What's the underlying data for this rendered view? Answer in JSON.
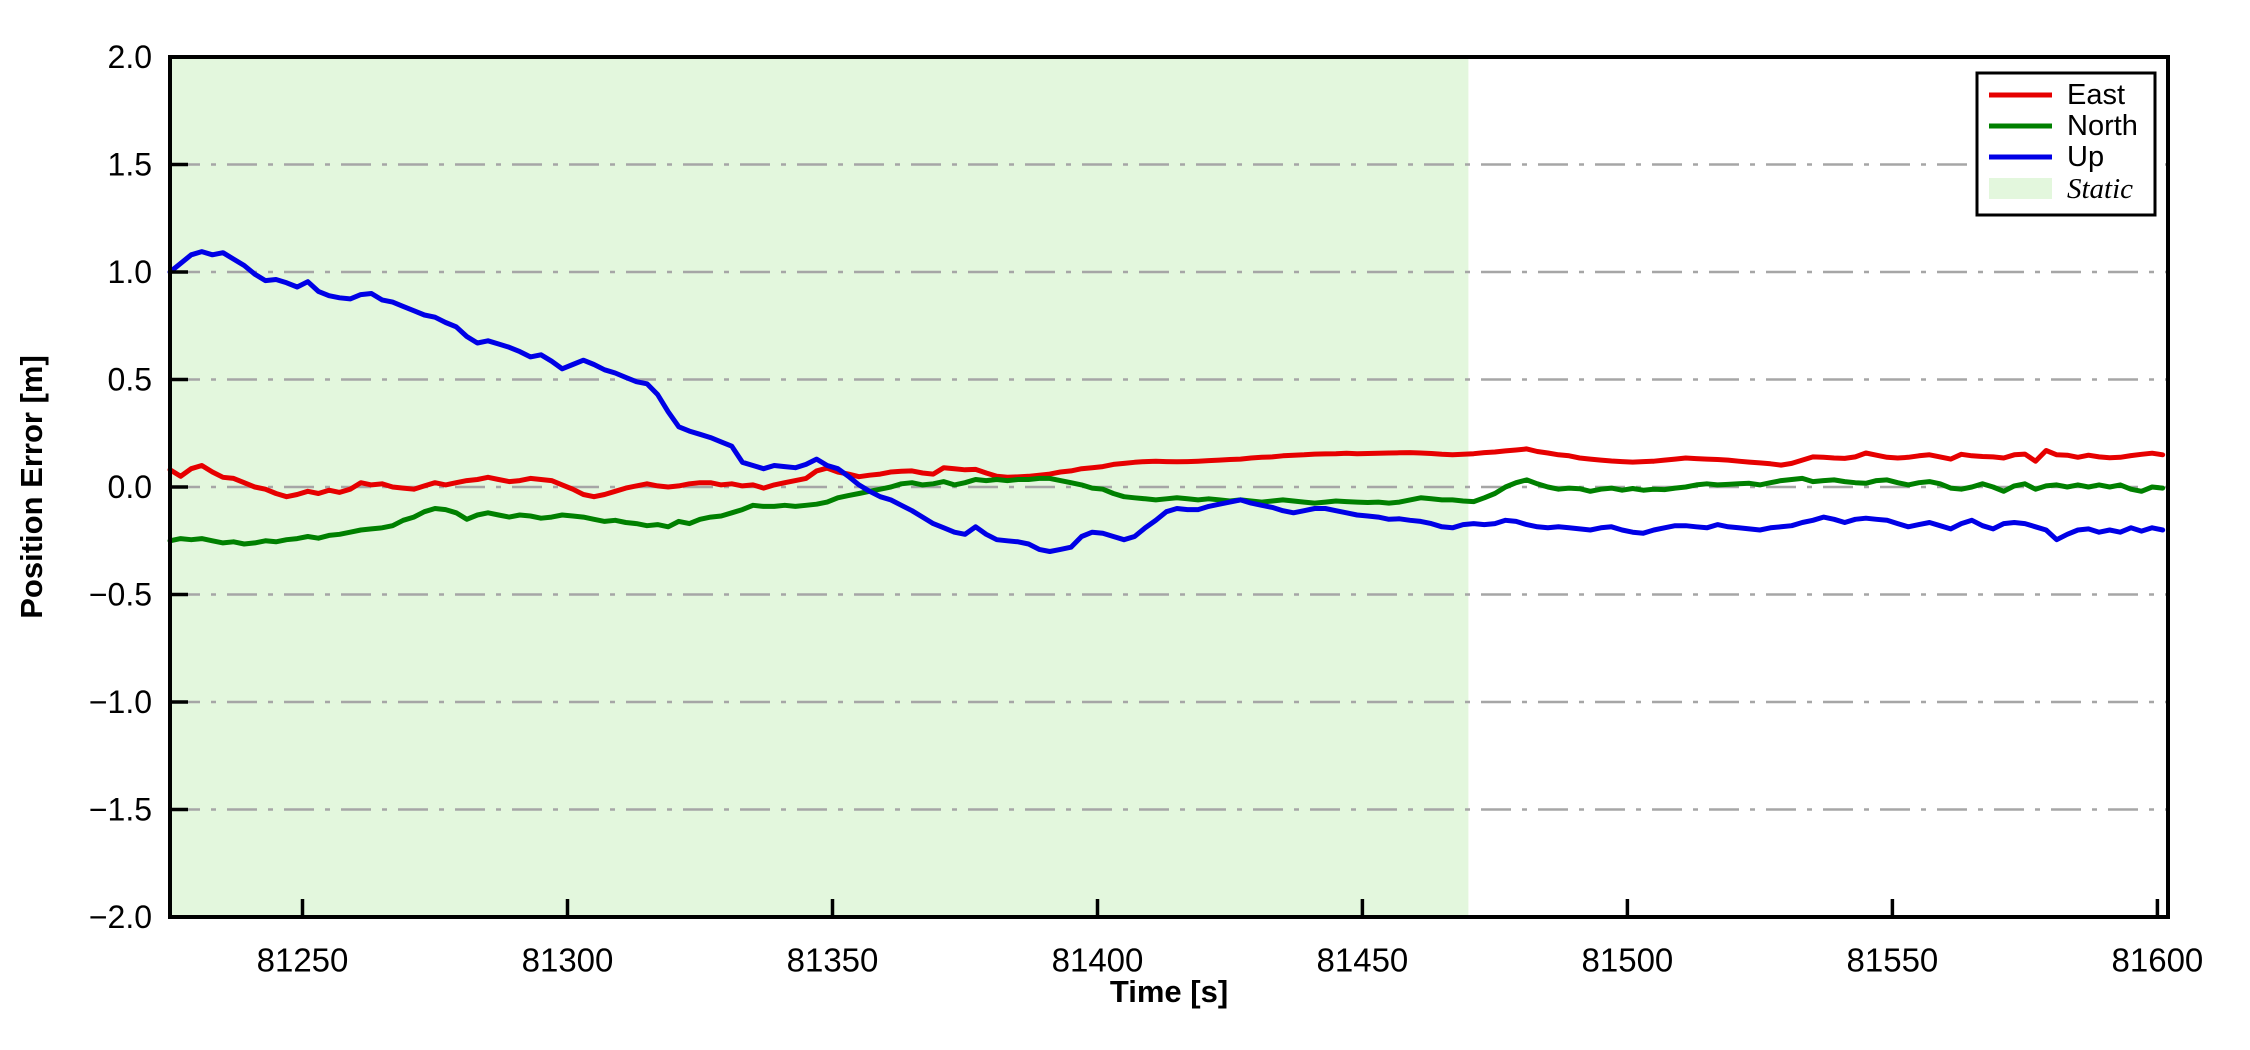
{
  "figure": {
    "xlabel": "Time [s]",
    "ylabel": "Position Error [m]"
  },
  "legend": {
    "items": [
      {
        "label": "East",
        "type": "line",
        "color": "#e60000"
      },
      {
        "label": "North",
        "type": "line",
        "color": "#008000"
      },
      {
        "label": "Up",
        "type": "line",
        "color": "#0000e6"
      },
      {
        "label": "Static",
        "type": "patch",
        "color": "#e3f7dd"
      }
    ]
  },
  "chart_data": {
    "type": "line",
    "title": "",
    "xlabel": "Time [s]",
    "ylabel": "Position Error [m]",
    "xlim": [
      81225,
      81602
    ],
    "ylim": [
      -2.0,
      2.0
    ],
    "xticks": [
      81250,
      81300,
      81350,
      81400,
      81450,
      81500,
      81550,
      81600
    ],
    "yticks": [
      2.0,
      1.5,
      1.0,
      0.5,
      0.0,
      -0.5,
      -1.0,
      -1.5,
      -2.0
    ],
    "ytick_labels": [
      "2.0",
      "1.5",
      "1.0",
      "0.5",
      "0.0",
      "−0.5",
      "−1.0",
      "−1.5",
      "−2.0"
    ],
    "grid": {
      "axis": "y",
      "style": "dash-dot",
      "color": "#a6a6a6"
    },
    "legend_position": "upper right",
    "static_region": {
      "label": "Static",
      "x_start": 81225,
      "x_end": 81470,
      "color": "#e3f7dd"
    },
    "x_start": 81225,
    "x_step": 2,
    "series": [
      {
        "name": "East",
        "color": "#e60000",
        "values": [
          0.08,
          0.05,
          0.085,
          0.1,
          0.07,
          0.045,
          0.04,
          0.02,
          0.0,
          -0.01,
          -0.03,
          -0.045,
          -0.035,
          -0.02,
          -0.03,
          -0.015,
          -0.025,
          -0.01,
          0.02,
          0.01,
          0.015,
          0.0,
          -0.005,
          -0.01,
          0.005,
          0.02,
          0.01,
          0.02,
          0.03,
          0.035,
          0.045,
          0.035,
          0.025,
          0.03,
          0.04,
          0.035,
          0.03,
          0.01,
          -0.01,
          -0.035,
          -0.045,
          -0.035,
          -0.02,
          -0.005,
          0.005,
          0.015,
          0.005,
          0.0,
          0.005,
          0.015,
          0.02,
          0.02,
          0.01,
          0.015,
          0.005,
          0.01,
          -0.005,
          0.01,
          0.02,
          0.03,
          0.04,
          0.075,
          0.088,
          0.07,
          0.06,
          0.048,
          0.055,
          0.06,
          0.07,
          0.073,
          0.075,
          0.065,
          0.06,
          0.09,
          0.085,
          0.08,
          0.082,
          0.065,
          0.05,
          0.045,
          0.047,
          0.05,
          0.055,
          0.06,
          0.07,
          0.075,
          0.085,
          0.09,
          0.095,
          0.105,
          0.11,
          0.115,
          0.118,
          0.12,
          0.118,
          0.117,
          0.118,
          0.12,
          0.123,
          0.125,
          0.128,
          0.13,
          0.135,
          0.138,
          0.14,
          0.145,
          0.148,
          0.15,
          0.153,
          0.154,
          0.155,
          0.157,
          0.155,
          0.156,
          0.157,
          0.158,
          0.159,
          0.16,
          0.158,
          0.156,
          0.152,
          0.15,
          0.152,
          0.155,
          0.16,
          0.163,
          0.168,
          0.172,
          0.177,
          0.165,
          0.158,
          0.15,
          0.145,
          0.135,
          0.13,
          0.125,
          0.121,
          0.118,
          0.116,
          0.118,
          0.12,
          0.125,
          0.13,
          0.135,
          0.132,
          0.13,
          0.128,
          0.125,
          0.12,
          0.116,
          0.112,
          0.108,
          0.102,
          0.11,
          0.125,
          0.14,
          0.138,
          0.135,
          0.133,
          0.14,
          0.158,
          0.148,
          0.138,
          0.135,
          0.138,
          0.145,
          0.15,
          0.14,
          0.13,
          0.152,
          0.145,
          0.142,
          0.14,
          0.135,
          0.15,
          0.153,
          0.12,
          0.17,
          0.15,
          0.148,
          0.138,
          0.148,
          0.14,
          0.136,
          0.138,
          0.146,
          0.152,
          0.157,
          0.15
        ]
      },
      {
        "name": "North",
        "color": "#008000",
        "values": [
          -0.25,
          -0.24,
          -0.245,
          -0.24,
          -0.25,
          -0.26,
          -0.255,
          -0.265,
          -0.26,
          -0.25,
          -0.255,
          -0.245,
          -0.24,
          -0.23,
          -0.238,
          -0.225,
          -0.22,
          -0.21,
          -0.2,
          -0.195,
          -0.19,
          -0.18,
          -0.155,
          -0.14,
          -0.115,
          -0.1,
          -0.105,
          -0.12,
          -0.15,
          -0.13,
          -0.12,
          -0.13,
          -0.14,
          -0.13,
          -0.135,
          -0.145,
          -0.14,
          -0.13,
          -0.135,
          -0.14,
          -0.15,
          -0.16,
          -0.155,
          -0.165,
          -0.17,
          -0.18,
          -0.175,
          -0.185,
          -0.16,
          -0.17,
          -0.15,
          -0.14,
          -0.135,
          -0.12,
          -0.105,
          -0.085,
          -0.09,
          -0.09,
          -0.085,
          -0.09,
          -0.085,
          -0.08,
          -0.07,
          -0.05,
          -0.04,
          -0.03,
          -0.02,
          -0.01,
          0.0,
          0.015,
          0.02,
          0.01,
          0.015,
          0.025,
          0.01,
          0.02,
          0.035,
          0.03,
          0.035,
          0.03,
          0.035,
          0.035,
          0.04,
          0.04,
          0.03,
          0.02,
          0.01,
          -0.005,
          -0.01,
          -0.03,
          -0.045,
          -0.05,
          -0.055,
          -0.06,
          -0.055,
          -0.05,
          -0.055,
          -0.06,
          -0.055,
          -0.06,
          -0.065,
          -0.06,
          -0.065,
          -0.07,
          -0.065,
          -0.06,
          -0.065,
          -0.07,
          -0.075,
          -0.07,
          -0.065,
          -0.068,
          -0.07,
          -0.072,
          -0.07,
          -0.075,
          -0.07,
          -0.06,
          -0.05,
          -0.055,
          -0.06,
          -0.06,
          -0.065,
          -0.068,
          -0.05,
          -0.03,
          0.0,
          0.02,
          0.033,
          0.015,
          0.0,
          -0.01,
          -0.005,
          -0.008,
          -0.02,
          -0.01,
          -0.005,
          -0.015,
          -0.007,
          -0.015,
          -0.01,
          -0.012,
          -0.005,
          0.0,
          0.01,
          0.015,
          0.01,
          0.012,
          0.015,
          0.017,
          0.01,
          0.02,
          0.03,
          0.035,
          0.04,
          0.025,
          0.03,
          0.033,
          0.025,
          0.02,
          0.017,
          0.03,
          0.033,
          0.02,
          0.01,
          0.02,
          0.025,
          0.015,
          -0.005,
          -0.01,
          0.0,
          0.015,
          0.0,
          -0.02,
          0.005,
          0.015,
          -0.01,
          0.005,
          0.01,
          0.0,
          0.01,
          0.0,
          0.01,
          0.0,
          0.01,
          -0.01,
          -0.02,
          0.0,
          -0.005
        ]
      },
      {
        "name": "Up",
        "color": "#0000e6",
        "values": [
          1.0,
          1.04,
          1.08,
          1.095,
          1.08,
          1.09,
          1.06,
          1.03,
          0.99,
          0.96,
          0.965,
          0.95,
          0.93,
          0.955,
          0.91,
          0.89,
          0.88,
          0.875,
          0.895,
          0.9,
          0.87,
          0.86,
          0.84,
          0.82,
          0.8,
          0.79,
          0.765,
          0.745,
          0.7,
          0.67,
          0.68,
          0.665,
          0.65,
          0.63,
          0.605,
          0.615,
          0.585,
          0.55,
          0.57,
          0.59,
          0.57,
          0.545,
          0.53,
          0.51,
          0.49,
          0.48,
          0.43,
          0.35,
          0.28,
          0.26,
          0.245,
          0.23,
          0.21,
          0.19,
          0.115,
          0.1,
          0.085,
          0.1,
          0.095,
          0.09,
          0.105,
          0.13,
          0.1,
          0.085,
          0.05,
          0.01,
          -0.02,
          -0.045,
          -0.06,
          -0.085,
          -0.11,
          -0.14,
          -0.17,
          -0.19,
          -0.21,
          -0.22,
          -0.185,
          -0.22,
          -0.245,
          -0.25,
          -0.255,
          -0.265,
          -0.29,
          -0.3,
          -0.29,
          -0.28,
          -0.23,
          -0.21,
          -0.215,
          -0.23,
          -0.245,
          -0.23,
          -0.19,
          -0.155,
          -0.115,
          -0.1,
          -0.105,
          -0.105,
          -0.09,
          -0.08,
          -0.07,
          -0.06,
          -0.075,
          -0.085,
          -0.095,
          -0.11,
          -0.12,
          -0.11,
          -0.1,
          -0.1,
          -0.11,
          -0.12,
          -0.13,
          -0.135,
          -0.14,
          -0.15,
          -0.148,
          -0.155,
          -0.16,
          -0.17,
          -0.185,
          -0.19,
          -0.175,
          -0.17,
          -0.175,
          -0.17,
          -0.155,
          -0.16,
          -0.175,
          -0.185,
          -0.19,
          -0.185,
          -0.19,
          -0.195,
          -0.2,
          -0.19,
          -0.185,
          -0.2,
          -0.21,
          -0.215,
          -0.2,
          -0.19,
          -0.18,
          -0.18,
          -0.185,
          -0.19,
          -0.175,
          -0.185,
          -0.19,
          -0.195,
          -0.2,
          -0.19,
          -0.185,
          -0.18,
          -0.165,
          -0.155,
          -0.14,
          -0.15,
          -0.165,
          -0.15,
          -0.145,
          -0.15,
          -0.155,
          -0.17,
          -0.185,
          -0.175,
          -0.165,
          -0.18,
          -0.195,
          -0.17,
          -0.155,
          -0.18,
          -0.195,
          -0.17,
          -0.165,
          -0.17,
          -0.185,
          -0.2,
          -0.245,
          -0.22,
          -0.2,
          -0.195,
          -0.21,
          -0.2,
          -0.21,
          -0.19,
          -0.205,
          -0.19,
          -0.2
        ]
      }
    ]
  }
}
